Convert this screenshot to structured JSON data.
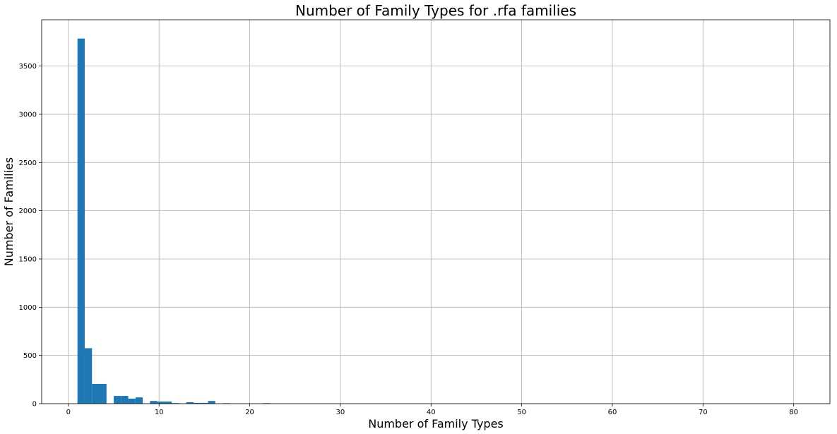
{
  "chart_data": {
    "type": "bar",
    "title": "Number of Family Types for .rfa families",
    "xlabel": "Number of Family Types",
    "ylabel": "Number of Families",
    "xlim": [
      -2.95,
      84.0
    ],
    "ylim": [
      0,
      3980
    ],
    "xticks": [
      0,
      10,
      20,
      30,
      40,
      50,
      60,
      70,
      80
    ],
    "yticks": [
      0,
      500,
      1000,
      1500,
      2000,
      2500,
      3000,
      3500
    ],
    "grid": true,
    "legend": "none",
    "bar_color": "#1f77b4",
    "bin_width": 0.8,
    "bins": [
      {
        "x0": 1.0,
        "value": 3785
      },
      {
        "x0": 1.8,
        "value": 575
      },
      {
        "x0": 2.6,
        "value": 205
      },
      {
        "x0": 3.4,
        "value": 205
      },
      {
        "x0": 5.0,
        "value": 80
      },
      {
        "x0": 5.8,
        "value": 80
      },
      {
        "x0": 6.6,
        "value": 52
      },
      {
        "x0": 7.4,
        "value": 65
      },
      {
        "x0": 9.0,
        "value": 28
      },
      {
        "x0": 9.8,
        "value": 22
      },
      {
        "x0": 10.6,
        "value": 22
      },
      {
        "x0": 11.4,
        "value": 6
      },
      {
        "x0": 13.0,
        "value": 15
      },
      {
        "x0": 13.8,
        "value": 8
      },
      {
        "x0": 14.6,
        "value": 8
      },
      {
        "x0": 15.4,
        "value": 28
      },
      {
        "x0": 17.0,
        "value": 5
      },
      {
        "x0": 21.4,
        "value": 5
      }
    ]
  }
}
